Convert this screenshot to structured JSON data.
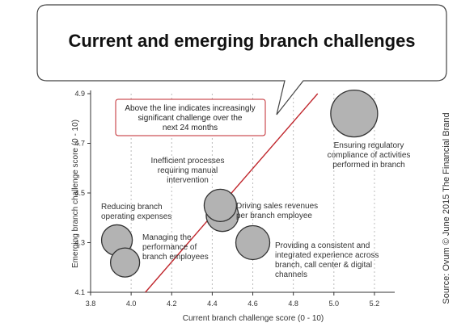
{
  "chart_data": {
    "type": "scatter",
    "title": "Current and emerging branch challenges",
    "xlabel": "Current branch challenge score (0 - 10)",
    "ylabel": "Emerging branch challenge score (0 - 10)",
    "xlim": [
      3.8,
      5.3
    ],
    "ylim": [
      4.1,
      4.9
    ],
    "xticks": [
      "3.8",
      "4.0",
      "4.2",
      "4.4",
      "4.6",
      "4.8",
      "5.0",
      "5.2"
    ],
    "yticks": [
      "4.1",
      "4.3",
      "4.5",
      "4.7",
      "4.9"
    ],
    "grid": "vertical dotted",
    "points": [
      {
        "x": 5.1,
        "y": 4.82
      },
      {
        "x": 4.45,
        "y": 4.41
      },
      {
        "x": 4.44,
        "y": 4.45
      },
      {
        "x": 4.6,
        "y": 4.3
      },
      {
        "x": 3.93,
        "y": 4.31
      },
      {
        "x": 3.97,
        "y": 4.22
      }
    ],
    "trend_line": {
      "x": [
        4.07,
        4.92
      ],
      "y": [
        4.1,
        4.9
      ]
    },
    "annotations": [
      {
        "id": "ensuring",
        "lines": [
          "Ensuring regulatory",
          "compliance of activities",
          "performed in branch"
        ]
      },
      {
        "id": "inefficient",
        "lines": [
          "Inefficient processes",
          "requiring manual",
          "intervention"
        ]
      },
      {
        "id": "driving",
        "lines": [
          "Driving sales revenues",
          "per branch employee"
        ]
      },
      {
        "id": "reducing",
        "lines": [
          "Reducing branch",
          "operating expenses"
        ]
      },
      {
        "id": "managing",
        "lines": [
          "Managing the",
          "performance of",
          "branch employees"
        ]
      },
      {
        "id": "providing",
        "lines": [
          "Providing a consistent and",
          "integrated experience across",
          "branch, call center & digital",
          "channels"
        ]
      }
    ],
    "callout": [
      "Above the line indicates increasingly",
      "significant challenge over the",
      "next 24 months"
    ],
    "source": "Source: Ovum © June 2015 The Financial Brand",
    "colors": {
      "bubble_fill": "#b3b3b3",
      "bubble_stroke": "#333333",
      "trend_line": "#c0272d",
      "callout_border": "#c0272d"
    }
  }
}
